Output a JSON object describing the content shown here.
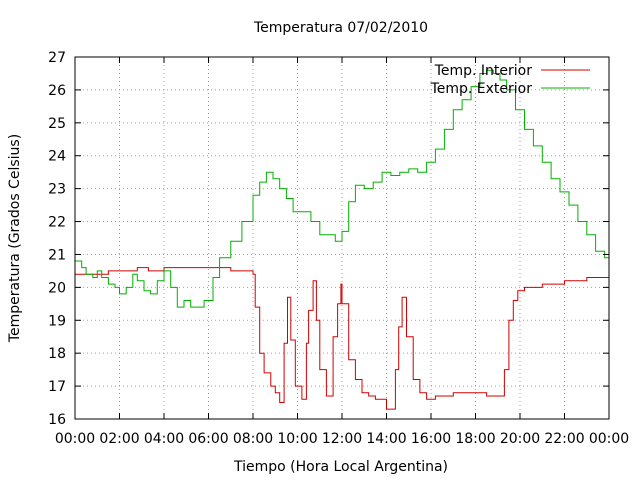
{
  "chart_data": {
    "type": "line",
    "title": "Temperatura 07/02/2010",
    "xlabel": "Tiempo (Hora Local Argentina)",
    "ylabel": "Temperatura (Grados Celsius)",
    "xlim": [
      0,
      24
    ],
    "ylim": [
      16,
      27
    ],
    "x_tick_labels": [
      "00:00",
      "02:00",
      "04:00",
      "06:00",
      "08:00",
      "10:00",
      "12:00",
      "14:00",
      "16:00",
      "18:00",
      "20:00",
      "22:00",
      "00:00"
    ],
    "y_ticks": [
      16,
      17,
      18,
      19,
      20,
      21,
      22,
      23,
      24,
      25,
      26,
      27
    ],
    "grid": true,
    "legend_position": "top-right",
    "series": [
      {
        "name": "Temp. Interior",
        "color": "#d00000",
        "x": [
          0,
          1.2,
          1.5,
          1.8,
          2.0,
          2.4,
          2.8,
          3.0,
          3.3,
          3.5,
          3.8,
          4.0,
          5.0,
          6.0,
          6.5,
          7.0,
          7.5,
          8.0,
          8.1,
          8.3,
          8.5,
          8.8,
          9.0,
          9.2,
          9.4,
          9.55,
          9.7,
          9.9,
          10.2,
          10.4,
          10.5,
          10.7,
          10.85,
          11.0,
          11.3,
          11.6,
          11.8,
          11.95,
          12.0,
          12.3,
          12.6,
          12.9,
          13.2,
          13.5,
          13.8,
          14.0,
          14.2,
          14.4,
          14.55,
          14.7,
          14.9,
          15.2,
          15.5,
          15.8,
          16.2,
          16.6,
          17.0,
          17.5,
          18.0,
          18.5,
          19.0,
          19.3,
          19.5,
          19.7,
          19.9,
          20.2,
          20.6,
          21.0,
          21.5,
          22.0,
          22.5,
          23.0,
          23.6,
          24.0
        ],
        "y": [
          20.4,
          20.4,
          20.5,
          20.5,
          20.5,
          20.5,
          20.6,
          20.6,
          20.5,
          20.5,
          20.5,
          20.6,
          20.6,
          20.6,
          20.6,
          20.5,
          20.5,
          20.4,
          19.4,
          18.0,
          17.4,
          17.0,
          16.8,
          16.5,
          18.3,
          19.7,
          18.4,
          17.0,
          16.6,
          18.3,
          19.3,
          20.2,
          19.0,
          17.5,
          16.7,
          18.5,
          19.5,
          20.1,
          19.5,
          17.8,
          17.2,
          16.8,
          16.7,
          16.6,
          16.6,
          16.3,
          16.3,
          17.5,
          18.8,
          19.7,
          18.5,
          17.2,
          16.8,
          16.6,
          16.7,
          16.7,
          16.8,
          16.8,
          16.8,
          16.7,
          16.7,
          17.5,
          19.0,
          19.6,
          19.9,
          20.0,
          20.0,
          20.1,
          20.1,
          20.2,
          20.2,
          20.3,
          20.3,
          20.4
        ]
      },
      {
        "name": "Temp. Exterior",
        "color": "#00b000",
        "x": [
          0,
          0.3,
          0.5,
          0.8,
          1.0,
          1.2,
          1.5,
          1.8,
          2.0,
          2.3,
          2.6,
          2.8,
          3.1,
          3.4,
          3.7,
          4.0,
          4.3,
          4.6,
          4.9,
          5.2,
          5.5,
          5.8,
          6.2,
          6.5,
          7.0,
          7.5,
          8.0,
          8.3,
          8.6,
          8.9,
          9.2,
          9.5,
          9.8,
          10.2,
          10.6,
          11.0,
          11.4,
          11.7,
          12.0,
          12.3,
          12.6,
          13.0,
          13.4,
          13.8,
          14.2,
          14.6,
          15.0,
          15.4,
          15.8,
          16.2,
          16.6,
          17.0,
          17.4,
          17.8,
          18.2,
          18.5,
          18.8,
          19.1,
          19.4,
          19.8,
          20.2,
          20.6,
          21.0,
          21.4,
          21.8,
          22.2,
          22.6,
          23.0,
          23.4,
          23.8,
          24.0
        ],
        "y": [
          20.8,
          20.6,
          20.4,
          20.3,
          20.5,
          20.3,
          20.1,
          20.0,
          19.8,
          20.0,
          20.4,
          20.2,
          19.9,
          19.8,
          20.2,
          20.5,
          20.0,
          19.4,
          19.6,
          19.4,
          19.4,
          19.6,
          20.3,
          20.9,
          21.4,
          22.0,
          22.8,
          23.2,
          23.5,
          23.3,
          23.0,
          22.7,
          22.3,
          22.3,
          22.0,
          21.6,
          21.6,
          21.4,
          21.7,
          22.6,
          23.1,
          23.0,
          23.2,
          23.5,
          23.4,
          23.5,
          23.6,
          23.5,
          23.8,
          24.2,
          24.8,
          25.4,
          25.7,
          26.1,
          26.5,
          26.6,
          26.5,
          26.3,
          26.0,
          25.4,
          24.8,
          24.3,
          23.8,
          23.3,
          22.9,
          22.5,
          22.0,
          21.6,
          21.1,
          20.9,
          20.7
        ]
      }
    ]
  }
}
